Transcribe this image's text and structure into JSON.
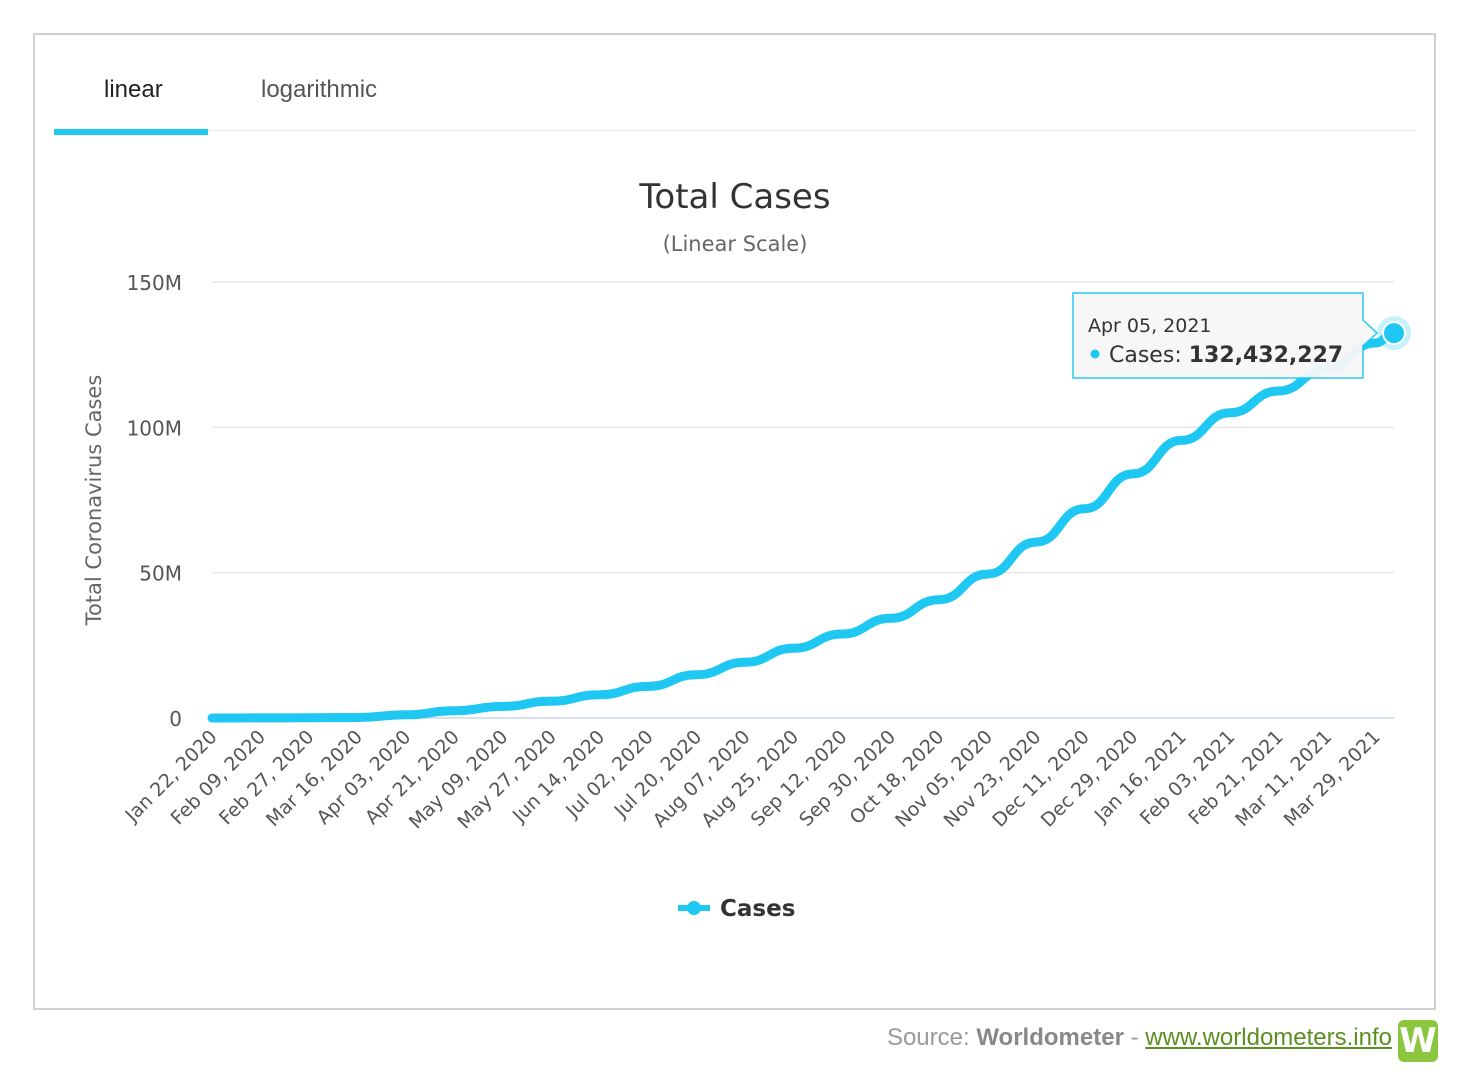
{
  "tabs": [
    {
      "label": "linear",
      "active": true
    },
    {
      "label": "logarithmic",
      "active": false
    }
  ],
  "chart_data": {
    "type": "line",
    "title": "Total Cases",
    "subtitle": "(Linear Scale)",
    "ylabel": "Total Coronavirus Cases",
    "xlabel": "",
    "ylim": [
      0,
      150000000
    ],
    "yticks": [
      0,
      50000000,
      100000000,
      150000000
    ],
    "ytick_labels": [
      "0",
      "50M",
      "100M",
      "150M"
    ],
    "xtick_labels": [
      "Jan 22, 2020",
      "Feb 09, 2020",
      "Feb 27, 2020",
      "Mar 16, 2020",
      "Apr 03, 2020",
      "Apr 21, 2020",
      "May 09, 2020",
      "May 27, 2020",
      "Jun 14, 2020",
      "Jul 02, 2020",
      "Jul 20, 2020",
      "Aug 07, 2020",
      "Aug 25, 2020",
      "Sep 12, 2020",
      "Sep 30, 2020",
      "Oct 18, 2020",
      "Nov 05, 2020",
      "Nov 23, 2020",
      "Dec 11, 2020",
      "Dec 29, 2020",
      "Jan 16, 2021",
      "Feb 03, 2021",
      "Feb 21, 2021",
      "Mar 11, 2021",
      "Mar 29, 2021"
    ],
    "grid": true,
    "legend": "bottom-center",
    "series": [
      {
        "name": "Cases",
        "color": "#1ec8f2",
        "x": [
          "2020-01-22",
          "2020-02-09",
          "2020-02-27",
          "2020-03-16",
          "2020-04-03",
          "2020-04-21",
          "2020-05-09",
          "2020-05-27",
          "2020-06-14",
          "2020-07-02",
          "2020-07-20",
          "2020-08-07",
          "2020-08-25",
          "2020-09-12",
          "2020-09-30",
          "2020-10-18",
          "2020-11-05",
          "2020-11-23",
          "2020-12-11",
          "2020-12-29",
          "2021-01-16",
          "2021-02-03",
          "2021-02-21",
          "2021-03-11",
          "2021-03-29",
          "2021-04-05"
        ],
        "values": [
          580,
          40000,
          83000,
          180000,
          1100000,
          2500000,
          4000000,
          5800000,
          8000000,
          10900000,
          14900000,
          19200000,
          24000000,
          28900000,
          34300000,
          40700000,
          49500000,
          60500000,
          72000000,
          84000000,
          95500000,
          105000000,
          112500000,
          120000000,
          129000000,
          132432227
        ]
      }
    ],
    "tooltip": {
      "date": "Apr 05, 2021",
      "label": "Cases",
      "value": "132,432,227"
    }
  },
  "source": {
    "prefix": "Source:",
    "name": "Worldometer",
    "sep": "-",
    "link": "www.worldometers.info",
    "logo_letter": "W"
  }
}
